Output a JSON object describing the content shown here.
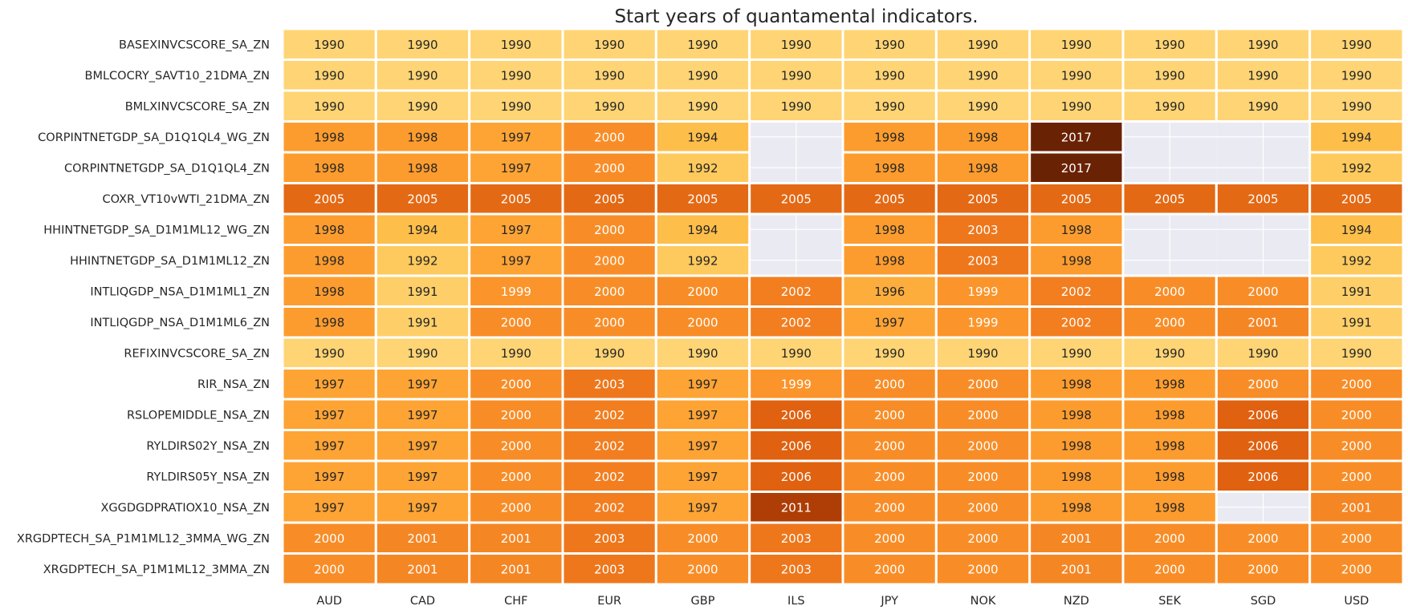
{
  "chart_data": {
    "type": "heatmap",
    "title": "Start years of quantamental indicators.",
    "xlabel": "",
    "ylabel": "",
    "colorscale": "YlOrBr",
    "missing_color": "#eaeaf2",
    "grid_lines_color": "#ffffff",
    "columns": [
      "AUD",
      "CAD",
      "CHF",
      "EUR",
      "GBP",
      "ILS",
      "JPY",
      "NOK",
      "NZD",
      "SEK",
      "SGD",
      "USD"
    ],
    "rows": [
      "BASEXINVCSCORE_SA_ZN",
      "BMLCOCRY_SAVT10_21DMA_ZN",
      "BMLXINVCSCORE_SA_ZN",
      "CORPINTNETGDP_SA_D1Q1QL4_WG_ZN",
      "CORPINTNETGDP_SA_D1Q1QL4_ZN",
      "COXR_VT10vWTI_21DMA_ZN",
      "HHINTNETGDP_SA_D1M1ML12_WG_ZN",
      "HHINTNETGDP_SA_D1M1ML12_ZN",
      "INTLIQGDP_NSA_D1M1ML1_ZN",
      "INTLIQGDP_NSA_D1M1ML6_ZN",
      "REFIXINVCSCORE_SA_ZN",
      "RIR_NSA_ZN",
      "RSLOPEMIDDLE_NSA_ZN",
      "RYLDIRS02Y_NSA_ZN",
      "RYLDIRS05Y_NSA_ZN",
      "XGGDGDPRATIOX10_NSA_ZN",
      "XRGDPTECH_SA_P1M1ML12_3MMA_WG_ZN",
      "XRGDPTECH_SA_P1M1ML12_3MMA_ZN"
    ],
    "values": [
      [
        1990,
        1990,
        1990,
        1990,
        1990,
        1990,
        1990,
        1990,
        1990,
        1990,
        1990,
        1990
      ],
      [
        1990,
        1990,
        1990,
        1990,
        1990,
        1990,
        1990,
        1990,
        1990,
        1990,
        1990,
        1990
      ],
      [
        1990,
        1990,
        1990,
        1990,
        1990,
        1990,
        1990,
        1990,
        1990,
        1990,
        1990,
        1990
      ],
      [
        1998,
        1998,
        1997,
        2000,
        1994,
        null,
        1998,
        1998,
        2017,
        null,
        null,
        1994
      ],
      [
        1998,
        1998,
        1997,
        2000,
        1992,
        null,
        1998,
        1998,
        2017,
        null,
        null,
        1992
      ],
      [
        2005,
        2005,
        2005,
        2005,
        2005,
        2005,
        2005,
        2005,
        2005,
        2005,
        2005,
        2005
      ],
      [
        1998,
        1994,
        1997,
        2000,
        1994,
        null,
        1998,
        2003,
        1998,
        null,
        null,
        1994
      ],
      [
        1998,
        1992,
        1997,
        2000,
        1992,
        null,
        1998,
        2003,
        1998,
        null,
        null,
        1992
      ],
      [
        1998,
        1991,
        1999,
        2000,
        2000,
        2002,
        1996,
        1999,
        2002,
        2000,
        2000,
        1991
      ],
      [
        1998,
        1991,
        2000,
        2000,
        2000,
        2002,
        1997,
        1999,
        2002,
        2000,
        2001,
        1991
      ],
      [
        1990,
        1990,
        1990,
        1990,
        1990,
        1990,
        1990,
        1990,
        1990,
        1990,
        1990,
        1990
      ],
      [
        1997,
        1997,
        2000,
        2003,
        1997,
        1999,
        2000,
        2000,
        1998,
        1998,
        2000,
        2000
      ],
      [
        1997,
        1997,
        2000,
        2002,
        1997,
        2006,
        2000,
        2000,
        1998,
        1998,
        2006,
        2000
      ],
      [
        1997,
        1997,
        2000,
        2002,
        1997,
        2006,
        2000,
        2000,
        1998,
        1998,
        2006,
        2000
      ],
      [
        1997,
        1997,
        2000,
        2002,
        1997,
        2006,
        2000,
        2000,
        1998,
        1998,
        2006,
        2000
      ],
      [
        1997,
        1997,
        2000,
        2002,
        1997,
        2011,
        2000,
        2000,
        1998,
        1998,
        null,
        2001
      ],
      [
        2000,
        2001,
        2001,
        2003,
        2000,
        2003,
        2000,
        2000,
        2001,
        2000,
        2000,
        2000
      ],
      [
        2000,
        2001,
        2001,
        2003,
        2000,
        2003,
        2000,
        2000,
        2001,
        2000,
        2000,
        2000
      ]
    ]
  }
}
